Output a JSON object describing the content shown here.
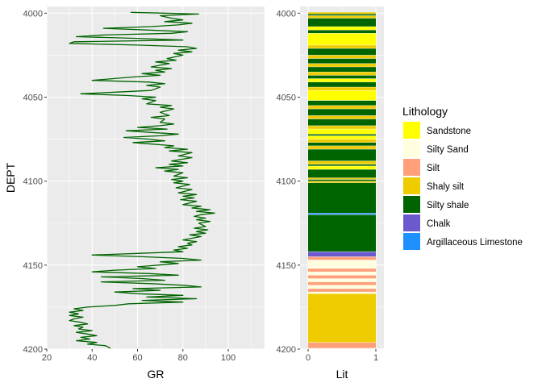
{
  "chart_data": [
    {
      "type": "line",
      "panel": "left",
      "xlabel": "GR",
      "ylabel": "DEPT",
      "xlim": [
        20,
        116
      ],
      "ylim": [
        4200,
        3996
      ],
      "x_ticks": [
        20,
        40,
        60,
        80,
        100
      ],
      "y_ticks": [
        4000,
        4050,
        4100,
        4150,
        4200
      ],
      "y_reversed": true,
      "grid": true,
      "series": [
        {
          "color": "#006400",
          "points": [
            [
              57,
              3999.5
            ],
            [
              87,
              4000.5
            ],
            [
              70,
              4001.5
            ],
            [
              75,
              4003
            ],
            [
              80,
              4004
            ],
            [
              72,
              4005
            ],
            [
              84,
              4006
            ],
            [
              78,
              4007
            ],
            [
              66,
              4008
            ],
            [
              45,
              4009
            ],
            [
              64,
              4010
            ],
            [
              82,
              4011
            ],
            [
              75,
              4012
            ],
            [
              45,
              4013
            ],
            [
              33,
              4014
            ],
            [
              60,
              4015
            ],
            [
              80,
              4016
            ],
            [
              32,
              4017
            ],
            [
              30,
              4018
            ],
            [
              60,
              4019
            ],
            [
              82,
              4020
            ],
            [
              86,
              4021
            ],
            [
              78,
              4022
            ],
            [
              84,
              4023
            ],
            [
              76,
              4024
            ],
            [
              80,
              4025
            ],
            [
              73,
              4027
            ],
            [
              77,
              4028
            ],
            [
              68,
              4029
            ],
            [
              74,
              4030
            ],
            [
              70,
              4031
            ],
            [
              66,
              4032
            ],
            [
              75,
              4033
            ],
            [
              68,
              4034
            ],
            [
              72,
              4035
            ],
            [
              62,
              4036
            ],
            [
              70,
              4037
            ],
            [
              58,
              4038
            ],
            [
              40,
              4040
            ],
            [
              65,
              4041
            ],
            [
              72,
              4042
            ],
            [
              64,
              4043
            ],
            [
              70,
              4044
            ],
            [
              66,
              4046
            ],
            [
              50,
              4047
            ],
            [
              35,
              4048
            ],
            [
              55,
              4049
            ],
            [
              68,
              4050
            ],
            [
              62,
              4051
            ],
            [
              68,
              4052
            ],
            [
              64,
              4054
            ],
            [
              75,
              4055
            ],
            [
              70,
              4056
            ],
            [
              76,
              4057
            ],
            [
              70,
              4059
            ],
            [
              74,
              4061
            ],
            [
              66,
              4062
            ],
            [
              72,
              4063
            ],
            [
              70,
              4065
            ],
            [
              76,
              4066
            ],
            [
              70,
              4067
            ],
            [
              60,
              4068
            ],
            [
              73,
              4069
            ],
            [
              55,
              4070
            ],
            [
              66,
              4071
            ],
            [
              78,
              4072
            ],
            [
              70,
              4073
            ],
            [
              54,
              4074
            ],
            [
              65,
              4075
            ],
            [
              72,
              4076
            ],
            [
              58,
              4077
            ],
            [
              67,
              4078
            ],
            [
              76,
              4079
            ],
            [
              72,
              4080
            ],
            [
              82,
              4081
            ],
            [
              74,
              4082
            ],
            [
              84,
              4083
            ],
            [
              78,
              4085
            ],
            [
              84,
              4086
            ],
            [
              75,
              4088
            ],
            [
              82,
              4089
            ],
            [
              74,
              4090
            ],
            [
              80,
              4091
            ],
            [
              68,
              4092
            ],
            [
              78,
              4093
            ],
            [
              72,
              4094
            ],
            [
              80,
              4095
            ],
            [
              76,
              4097
            ],
            [
              82,
              4098
            ],
            [
              75,
              4099
            ],
            [
              80,
              4100
            ],
            [
              76,
              4101
            ],
            [
              83,
              4102
            ],
            [
              77,
              4104
            ],
            [
              84,
              4105
            ],
            [
              78,
              4107
            ],
            [
              86,
              4108
            ],
            [
              80,
              4109
            ],
            [
              85,
              4110
            ],
            [
              79,
              4111
            ],
            [
              86,
              4112
            ],
            [
              80,
              4114
            ],
            [
              88,
              4115
            ],
            [
              84,
              4116
            ],
            [
              92,
              4117
            ],
            [
              86,
              4118
            ],
            [
              94,
              4119
            ],
            [
              88,
              4120
            ],
            [
              85,
              4121
            ],
            [
              90,
              4122
            ],
            [
              86,
              4123
            ],
            [
              92,
              4124
            ],
            [
              87,
              4125
            ],
            [
              90,
              4127
            ],
            [
              85,
              4128
            ],
            [
              91,
              4129
            ],
            [
              86,
              4130
            ],
            [
              90,
              4131
            ],
            [
              83,
              4132
            ],
            [
              88,
              4133
            ],
            [
              84,
              4134
            ],
            [
              80,
              4135
            ],
            [
              86,
              4136
            ],
            [
              82,
              4137
            ],
            [
              84,
              4138
            ],
            [
              78,
              4139
            ],
            [
              82,
              4140
            ],
            [
              76,
              4141
            ],
            [
              80,
              4142
            ],
            [
              60,
              4143
            ],
            [
              40,
              4144
            ],
            [
              62,
              4145
            ],
            [
              80,
              4146
            ],
            [
              88,
              4147
            ],
            [
              70,
              4148
            ],
            [
              78,
              4149
            ],
            [
              60,
              4151
            ],
            [
              68,
              4152
            ],
            [
              50,
              4153
            ],
            [
              40,
              4154
            ],
            [
              65,
              4155
            ],
            [
              78,
              4156
            ],
            [
              44,
              4157
            ],
            [
              62,
              4158
            ],
            [
              72,
              4159
            ],
            [
              44,
              4160
            ],
            [
              66,
              4161
            ],
            [
              80,
              4162
            ],
            [
              88,
              4163
            ],
            [
              58,
              4164
            ],
            [
              70,
              4165
            ],
            [
              50,
              4166
            ],
            [
              60,
              4167
            ],
            [
              80,
              4168
            ],
            [
              64,
              4169
            ],
            [
              86,
              4170
            ],
            [
              62,
              4171
            ],
            [
              80,
              4172
            ],
            [
              56,
              4173
            ],
            [
              50,
              4174
            ],
            [
              38,
              4175
            ],
            [
              32,
              4176
            ],
            [
              36,
              4177
            ],
            [
              30,
              4178
            ],
            [
              34,
              4179
            ],
            [
              30,
              4180
            ],
            [
              36,
              4181
            ],
            [
              32,
              4182
            ],
            [
              30,
              4183
            ],
            [
              35,
              4184
            ],
            [
              38,
              4185
            ],
            [
              32,
              4186
            ],
            [
              36,
              4187
            ],
            [
              34,
              4188
            ],
            [
              40,
              4189
            ],
            [
              33,
              4190
            ],
            [
              38,
              4191
            ],
            [
              42,
              4192
            ],
            [
              35,
              4193
            ],
            [
              39,
              4194
            ],
            [
              33,
              4195
            ],
            [
              42,
              4196
            ],
            [
              38,
              4197
            ],
            [
              46,
              4198
            ],
            [
              48,
              4199.5
            ]
          ]
        }
      ]
    },
    {
      "type": "bar",
      "panel": "right",
      "xlabel": "Lit",
      "xlim": [
        0,
        1
      ],
      "x_ticks": [
        0,
        1
      ],
      "ylim": [
        4200,
        3996
      ],
      "y_ticks": [
        4000,
        4050,
        4100,
        4150,
        4200
      ],
      "grid": true,
      "legend": {
        "title": "Lithology",
        "position": "right",
        "entries": [
          {
            "label": "Sandstone",
            "color": "#FFFF00"
          },
          {
            "label": "Silty Sand",
            "color": "#FFFFE0"
          },
          {
            "label": "Silt",
            "color": "#FFA07A"
          },
          {
            "label": "Shaly silt",
            "color": "#EECC00"
          },
          {
            "label": "Silty shale",
            "color": "#006400"
          },
          {
            "label": "Chalk",
            "color": "#6A5ACD"
          },
          {
            "label": "Argillaceous Limestone",
            "color": "#1E90FF"
          }
        ]
      },
      "intervals": [
        {
          "top": 3999.5,
          "base": 4000.5,
          "lith": "Shaly silt"
        },
        {
          "top": 4000.5,
          "base": 4001.5,
          "lith": "Silty shale"
        },
        {
          "top": 4001.5,
          "base": 4003,
          "lith": "Shaly silt"
        },
        {
          "top": 4003,
          "base": 4008,
          "lith": "Silty shale"
        },
        {
          "top": 4008,
          "base": 4010,
          "lith": "Sandstone"
        },
        {
          "top": 4010,
          "base": 4012,
          "lith": "Silty shale"
        },
        {
          "top": 4012,
          "base": 4019,
          "lith": "Sandstone"
        },
        {
          "top": 4019,
          "base": 4021,
          "lith": "Shaly silt"
        },
        {
          "top": 4021,
          "base": 4025,
          "lith": "Silty shale"
        },
        {
          "top": 4025,
          "base": 4027,
          "lith": "Shaly silt"
        },
        {
          "top": 4027,
          "base": 4030,
          "lith": "Silty shale"
        },
        {
          "top": 4030,
          "base": 4032,
          "lith": "Shaly silt"
        },
        {
          "top": 4032,
          "base": 4035,
          "lith": "Silty shale"
        },
        {
          "top": 4035,
          "base": 4037,
          "lith": "Shaly silt"
        },
        {
          "top": 4037,
          "base": 4039,
          "lith": "Silty shale"
        },
        {
          "top": 4039,
          "base": 4041,
          "lith": "Sandstone"
        },
        {
          "top": 4041,
          "base": 4044,
          "lith": "Silty shale"
        },
        {
          "top": 4044,
          "base": 4046,
          "lith": "Shaly silt"
        },
        {
          "top": 4046,
          "base": 4052,
          "lith": "Sandstone"
        },
        {
          "top": 4052,
          "base": 4055,
          "lith": "Silty shale"
        },
        {
          "top": 4055,
          "base": 4057,
          "lith": "Shaly silt"
        },
        {
          "top": 4057,
          "base": 4061,
          "lith": "Silty shale"
        },
        {
          "top": 4061,
          "base": 4063,
          "lith": "Shaly silt"
        },
        {
          "top": 4063,
          "base": 4067,
          "lith": "Silty shale"
        },
        {
          "top": 4067,
          "base": 4069,
          "lith": "Shaly silt"
        },
        {
          "top": 4069,
          "base": 4072,
          "lith": "Sandstone"
        },
        {
          "top": 4072,
          "base": 4073,
          "lith": "Silty shale"
        },
        {
          "top": 4073,
          "base": 4075,
          "lith": "Sandstone"
        },
        {
          "top": 4075,
          "base": 4077,
          "lith": "Shaly silt"
        },
        {
          "top": 4077,
          "base": 4079,
          "lith": "Silty shale"
        },
        {
          "top": 4079,
          "base": 4081,
          "lith": "Shaly silt"
        },
        {
          "top": 4081,
          "base": 4088,
          "lith": "Silty shale"
        },
        {
          "top": 4088,
          "base": 4090,
          "lith": "Shaly silt"
        },
        {
          "top": 4090,
          "base": 4091,
          "lith": "Silty shale"
        },
        {
          "top": 4091,
          "base": 4093,
          "lith": "Sandstone"
        },
        {
          "top": 4093,
          "base": 4098,
          "lith": "Silty shale"
        },
        {
          "top": 4098,
          "base": 4099,
          "lith": "Shaly silt"
        },
        {
          "top": 4099,
          "base": 4100,
          "lith": "Silty shale"
        },
        {
          "top": 4100,
          "base": 4101,
          "lith": "Shaly silt"
        },
        {
          "top": 4101,
          "base": 4119,
          "lith": "Silty shale"
        },
        {
          "top": 4119,
          "base": 4120,
          "lith": "Argillaceous Limestone"
        },
        {
          "top": 4120,
          "base": 4142,
          "lith": "Silty shale"
        },
        {
          "top": 4142,
          "base": 4145,
          "lith": "Chalk"
        },
        {
          "top": 4145,
          "base": 4147,
          "lith": "Silt"
        },
        {
          "top": 4147,
          "base": 4152,
          "lith": "Silty Sand"
        },
        {
          "top": 4152,
          "base": 4154,
          "lith": "Silt"
        },
        {
          "top": 4154,
          "base": 4156,
          "lith": "Silty Sand"
        },
        {
          "top": 4156,
          "base": 4158,
          "lith": "Silt"
        },
        {
          "top": 4158,
          "base": 4160,
          "lith": "Silty Sand"
        },
        {
          "top": 4160,
          "base": 4162,
          "lith": "Silt"
        },
        {
          "top": 4162,
          "base": 4164,
          "lith": "Silty Sand"
        },
        {
          "top": 4164,
          "base": 4166,
          "lith": "Silt"
        },
        {
          "top": 4166,
          "base": 4167,
          "lith": "Silty Sand"
        },
        {
          "top": 4167,
          "base": 4196,
          "lith": "Shaly silt"
        },
        {
          "top": 4196,
          "base": 4199.5,
          "lith": "Silt"
        }
      ]
    }
  ]
}
